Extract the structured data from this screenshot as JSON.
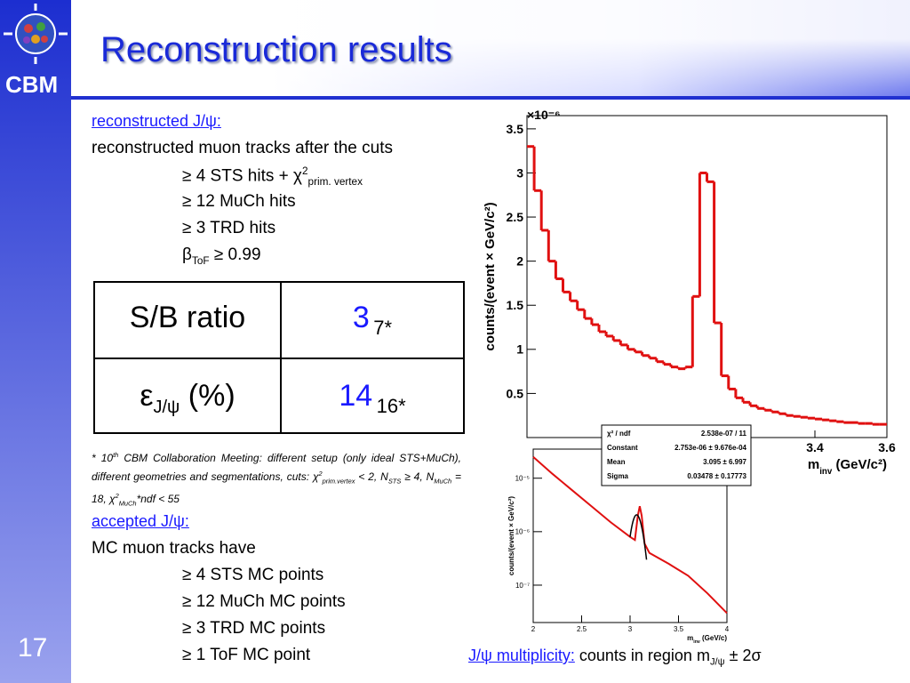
{
  "header": {
    "title": "Reconstruction results",
    "logo": "CBM",
    "page": "17"
  },
  "reco": {
    "heading": "reconstructed J/ψ:",
    "intro": "reconstructed muon tracks after the cuts",
    "cuts": [
      {
        "text": "≥ 4 STS hits + χ",
        "sup": "2",
        "sub": "prim. vertex"
      },
      {
        "text": "≥ 12 MuCh hits"
      },
      {
        "text": "≥ 3 TRD hits"
      },
      {
        "text": "β",
        "sub": "ToF",
        "rest": " ≥ 0.99"
      }
    ]
  },
  "table": {
    "rows": [
      {
        "label": "S/B ratio",
        "value": 3,
        "note": "7*"
      },
      {
        "label": "ε",
        "label_sub": "J/ψ",
        "label_rest": " (%)",
        "value": 14,
        "note": "16*"
      }
    ]
  },
  "footnote": [
    "* 10",
    "th",
    " CBM Collaboration Meeting: different setup (only ideal STS+MuCh), different geometries and segmentations, cuts: χ",
    "2",
    "prim.vertex",
    " < 2,  N",
    "STS",
    "  ≥ 4, N",
    "MuCh",
    " = 18, χ",
    "2",
    "MuCh",
    "*ndf < 55"
  ],
  "accepted": {
    "heading": "accepted J/ψ:",
    "intro": "MC muon tracks have",
    "items": [
      "≥ 4 STS MC points",
      "≥ 12 MuCh MC points",
      "≥ 3 TRD MC points",
      "≥ 1 ToF MC point"
    ]
  },
  "caption": [
    "J/ψ multiplicity:",
    " counts in region m",
    "J/ψ",
    " ± 2σ"
  ],
  "chart_data": [
    {
      "type": "histogram",
      "multiplier": "×10⁻⁶",
      "ylabel": "counts/(event × GeV/c²)",
      "xlabel": [
        "m",
        "inv",
        " (GeV/c²)"
      ],
      "color": "#e01010",
      "bins": [
        2.6,
        2.62,
        2.64,
        2.66,
        2.68,
        2.7,
        2.72,
        2.74,
        2.76,
        2.78,
        2.8,
        2.82,
        2.84,
        2.86,
        2.88,
        2.9,
        2.92,
        2.94,
        2.96,
        2.98,
        3.0,
        3.02,
        3.04,
        3.06,
        3.08,
        3.1,
        3.12,
        3.14,
        3.16,
        3.18,
        3.2,
        3.22,
        3.24,
        3.26,
        3.28,
        3.3,
        3.32,
        3.34,
        3.36,
        3.38,
        3.4,
        3.42,
        3.44,
        3.46,
        3.48,
        3.5,
        3.52,
        3.54,
        3.56,
        3.58,
        3.6
      ],
      "values": [
        3.3,
        2.8,
        2.35,
        2.0,
        1.8,
        1.65,
        1.55,
        1.45,
        1.35,
        1.28,
        1.2,
        1.15,
        1.1,
        1.05,
        1.0,
        0.97,
        0.93,
        0.9,
        0.86,
        0.83,
        0.8,
        0.78,
        0.8,
        1.6,
        3.0,
        2.9,
        1.3,
        0.7,
        0.55,
        0.45,
        0.4,
        0.36,
        0.33,
        0.31,
        0.29,
        0.27,
        0.25,
        0.24,
        0.23,
        0.22,
        0.21,
        0.2,
        0.19,
        0.18,
        0.17,
        0.17,
        0.16,
        0.16,
        0.15,
        0.15
      ],
      "xlim": [
        2.6,
        3.6
      ],
      "ylim": [
        0,
        3.65
      ],
      "xticks": [
        3.4,
        3.6
      ],
      "yticks": [
        0.5,
        1,
        1.5,
        2,
        2.5,
        3,
        3.5
      ]
    },
    {
      "type": "line",
      "log_y": true,
      "ylabel": "counts/(event × GeV/c²)",
      "xlabel": [
        "m",
        "inv",
        " (GeV/c)"
      ],
      "x": [
        2.0,
        2.2,
        2.4,
        2.6,
        2.8,
        3.0,
        3.05,
        3.08,
        3.1,
        3.12,
        3.15,
        3.2,
        3.4,
        3.6,
        3.8,
        4.0
      ],
      "series": [
        {
          "color": "#e01010",
          "values": [
            2.5e-05,
            1.2e-05,
            6e-06,
            3e-06,
            1.5e-06,
            8e-07,
            7e-07,
            2e-06,
            3e-06,
            2e-06,
            6e-07,
            4e-07,
            2.5e-07,
            1.5e-07,
            7e-08,
            3e-08
          ]
        }
      ],
      "xlim": [
        2,
        4
      ],
      "ylim": [
        2e-08,
        3.5e-05
      ],
      "xticks": [
        2,
        2.5,
        3,
        3.5,
        4
      ],
      "yticks": [
        {
          "value": 1e-07,
          "label": "10⁻⁷"
        },
        {
          "value": 1e-06,
          "label": "10⁻⁶"
        },
        {
          "value": 1e-05,
          "label": "10⁻⁵"
        }
      ],
      "stats": [
        [
          "χ² / ndf",
          "2.538e-07 / 11"
        ],
        [
          "Constant",
          "2.753e-06 ± 9.676e-04"
        ],
        [
          "Mean",
          "3.095 ± 6.997"
        ],
        [
          "Sigma",
          "0.03478 ± 0.17773"
        ]
      ]
    }
  ]
}
